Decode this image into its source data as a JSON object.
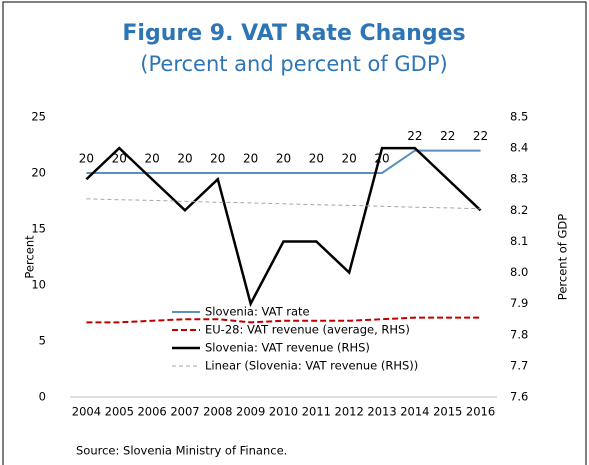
{
  "chart_data": {
    "type": "line",
    "title": "Figure 9. VAT Rate Changes",
    "subtitle": "(Percent and percent of GDP)",
    "y_label": "Percent",
    "y2_label": "Percent of GDP",
    "source": "Source: Slovenia Ministry of Finance.",
    "categories": [
      "2004",
      "2005",
      "2006",
      "2007",
      "2008",
      "2009",
      "2010",
      "2011",
      "2012",
      "2013",
      "2014",
      "2015",
      "2016"
    ],
    "ylim": [
      0,
      25
    ],
    "yticks": [
      0,
      5,
      10,
      15,
      20,
      25
    ],
    "y2lim": [
      7.6,
      8.5
    ],
    "y2ticks": [
      7.6,
      7.7,
      7.8,
      7.9,
      {
        "value": 8,
        "label": "8.0"
      },
      8.1,
      8.2,
      8.3,
      8.4,
      8.5
    ],
    "series": [
      {
        "name": "Slovenia: VAT rate",
        "color": "#5b8fc0",
        "axis": "y",
        "dash": "solid",
        "width": 2,
        "show_labels": true,
        "values": [
          20,
          20,
          20,
          20,
          20,
          20,
          20,
          20,
          20,
          20,
          22,
          22,
          22
        ]
      },
      {
        "name": "EU-28: VAT revenue (average, RHS)",
        "color": "#c00000",
        "axis": "y2",
        "dash": "dashed",
        "width": 2,
        "values": [
          7.84,
          7.84,
          7.845,
          7.85,
          7.85,
          7.84,
          7.845,
          7.845,
          7.845,
          7.85,
          7.855,
          7.855,
          7.855
        ]
      },
      {
        "name": "Slovenia: VAT revenue (RHS)",
        "color": "#000000",
        "axis": "y2",
        "dash": "solid",
        "width": 2.5,
        "values": [
          8.3,
          8.4,
          8.3,
          8.2,
          8.3,
          7.9,
          8.1,
          8.1,
          8.0,
          8.4,
          8.4,
          8.3,
          8.2
        ]
      },
      {
        "name": "Linear (Slovenia: VAT revenue (RHS))",
        "color": "#a6a6a6",
        "axis": "y2",
        "dash": "dashed",
        "width": 1,
        "values": [
          8.237,
          8.234,
          8.232,
          8.229,
          8.226,
          8.224,
          8.221,
          8.218,
          8.216,
          8.213,
          8.21,
          8.208,
          8.205
        ]
      }
    ]
  }
}
